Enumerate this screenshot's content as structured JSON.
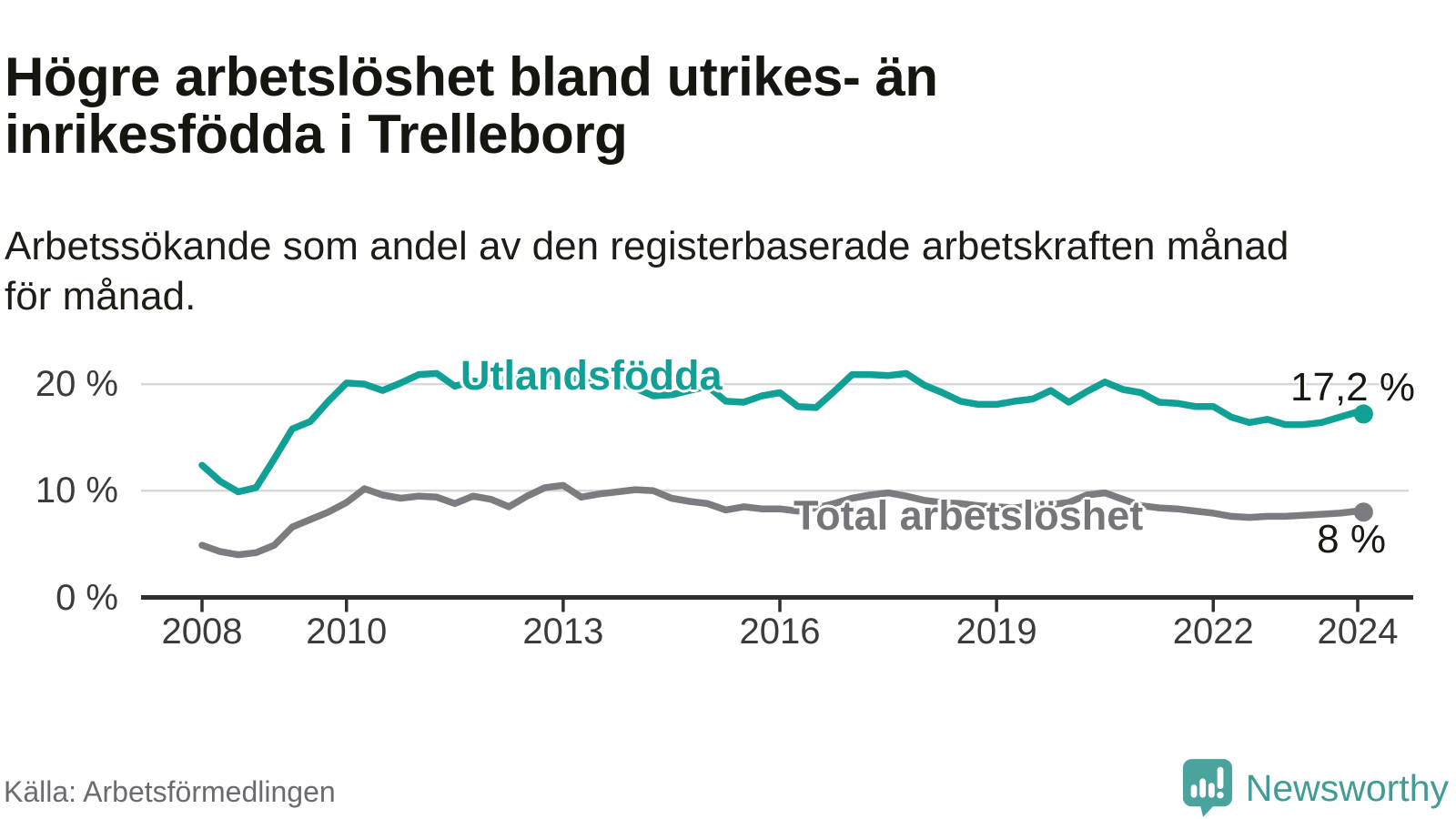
{
  "header": {
    "title_lines": [
      "Högre arbetslöshet bland utrikes- än",
      "inrikesfödda i Trelleborg"
    ],
    "subtitle_lines": [
      "Arbetssökande som andel av den registerbaserade arbetskraften månad",
      "för månad."
    ]
  },
  "chart_data": {
    "type": "line",
    "title": "Högre arbetslöshet bland utrikes- än inrikesfödda i Trelleborg",
    "subtitle": "Arbetssökande som andel av den registerbaserade arbetskraften månad för månad.",
    "xlabel": "",
    "ylabel": "",
    "grid": "horizontal",
    "legend": "inline-labels",
    "xlim": [
      2007.2,
      2024.75
    ],
    "ylim": [
      0,
      25
    ],
    "x": [
      2008,
      2008.25,
      2008.5,
      2008.75,
      2009,
      2009.25,
      2009.5,
      2009.75,
      2010,
      2010.25,
      2010.5,
      2010.75,
      2011,
      2011.25,
      2011.5,
      2011.75,
      2012,
      2012.25,
      2012.5,
      2012.75,
      2013,
      2013.25,
      2013.5,
      2013.75,
      2014,
      2014.25,
      2014.5,
      2014.75,
      2015,
      2015.25,
      2015.5,
      2015.75,
      2016,
      2016.25,
      2016.5,
      2016.75,
      2017,
      2017.25,
      2017.5,
      2017.75,
      2018,
      2018.25,
      2018.5,
      2018.75,
      2019,
      2019.25,
      2019.5,
      2019.75,
      2020,
      2020.25,
      2020.5,
      2020.75,
      2021,
      2021.25,
      2021.5,
      2021.75,
      2022,
      2022.25,
      2022.5,
      2022.75,
      2023,
      2023.25,
      2023.5,
      2023.75,
      2024,
      2024.08
    ],
    "series": [
      {
        "name": "Utlandsfödda",
        "color": "#11a096",
        "end_label": "17,2 %",
        "end_value": 17.2,
        "values": [
          12.4,
          10.9,
          9.9,
          10.3,
          13.0,
          15.8,
          16.5,
          18.4,
          20.1,
          20.0,
          19.4,
          20.1,
          20.9,
          21.0,
          19.8,
          20.3,
          20.1,
          20.6,
          20.9,
          20.7,
          20.8,
          20.4,
          20.6,
          20.1,
          19.6,
          18.9,
          19.0,
          19.4,
          19.8,
          18.4,
          18.3,
          18.9,
          19.2,
          17.9,
          17.8,
          19.3,
          20.9,
          20.9,
          20.8,
          21.0,
          19.9,
          19.2,
          18.4,
          18.1,
          18.1,
          18.4,
          18.6,
          19.4,
          18.3,
          19.3,
          20.2,
          19.5,
          19.2,
          18.3,
          18.2,
          17.9,
          17.9,
          16.9,
          16.4,
          16.7,
          16.2,
          16.2,
          16.4,
          16.9,
          17.4,
          17.2
        ]
      },
      {
        "name": "Total arbetslöshet",
        "color": "#7b7b80",
        "end_label": "8 %",
        "end_value": 8.0,
        "values": [
          4.9,
          4.3,
          4.0,
          4.2,
          4.9,
          6.6,
          7.3,
          8.0,
          8.9,
          10.2,
          9.6,
          9.3,
          9.5,
          9.4,
          8.8,
          9.5,
          9.2,
          8.5,
          9.5,
          10.3,
          10.5,
          9.4,
          9.7,
          9.9,
          10.1,
          10.0,
          9.3,
          9.0,
          8.8,
          8.2,
          8.5,
          8.3,
          8.3,
          8.1,
          8.4,
          8.8,
          9.3,
          9.6,
          9.8,
          9.5,
          9.1,
          8.9,
          8.8,
          8.6,
          8.5,
          8.4,
          8.6,
          8.7,
          8.9,
          9.6,
          9.8,
          9.2,
          8.6,
          8.4,
          8.3,
          8.1,
          7.9,
          7.6,
          7.5,
          7.6,
          7.6,
          7.7,
          7.8,
          7.9,
          8.1,
          8.0
        ]
      }
    ],
    "xticks": {
      "years": [
        2008,
        2010,
        2013,
        2016,
        2019,
        2022,
        2024
      ],
      "labels": [
        "2008",
        "2010",
        "2013",
        "2016",
        "2019",
        "2022",
        "2024"
      ]
    },
    "yticks": {
      "values": [
        0,
        10,
        20
      ],
      "labels": [
        "0 %",
        "10 %",
        "20 %"
      ]
    }
  },
  "colors": {
    "accent_teal": "#11a096",
    "series_gray": "#7b7b80",
    "grid": "#d8d8d8",
    "axis": "#2f2f2f",
    "tick_label": "#3b3b3b",
    "logo_bubble": "#4aa39c",
    "logo_text": "#3f9d95"
  },
  "footer": {
    "source": "Källa: Arbetsförmedlingen",
    "brand": "Newsworthy"
  }
}
